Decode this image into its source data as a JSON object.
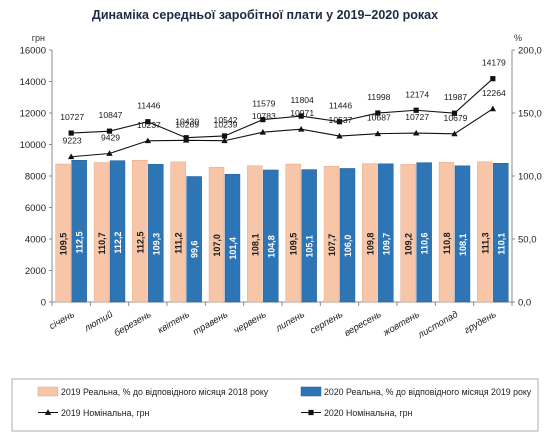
{
  "chart_data": {
    "type": "bar",
    "title": "Динаміка середньої заробітної плати у 2019–2020 роках",
    "left_axis_unit": "грн",
    "right_axis_unit": "%",
    "left_ylim": [
      0,
      16000
    ],
    "left_ticks": [
      0,
      2000,
      4000,
      6000,
      8000,
      10000,
      12000,
      14000,
      16000
    ],
    "right_ylim": [
      0,
      200
    ],
    "right_ticks": [
      "0,0",
      "50,0",
      "100,0",
      "150,0",
      "200,0"
    ],
    "right_tick_values": [
      0,
      50,
      100,
      150,
      200
    ],
    "categories": [
      "січень",
      "лютий",
      "березень",
      "квітень",
      "травень",
      "червень",
      "липень",
      "серпень",
      "вересень",
      "жовтень",
      "листопад",
      "грудень"
    ],
    "bar_series": [
      {
        "name": "2019 Реальна, % до відповідного місяця 2018 року",
        "color": "#f7c6a8",
        "values": [
          109.5,
          110.7,
          112.5,
          111.2,
          107.0,
          108.1,
          109.5,
          107.7,
          109.8,
          109.2,
          110.8,
          111.3
        ],
        "labels": [
          "109,5",
          "110,7",
          "112,5",
          "111,2",
          "107,0",
          "108,1",
          "109,5",
          "107,7",
          "109,8",
          "109,2",
          "110,8",
          "111,3"
        ]
      },
      {
        "name": "2020 Реальна, % до відповідного місяця 2019 року",
        "color": "#2e75b6",
        "values": [
          112.5,
          112.2,
          109.3,
          99.6,
          101.4,
          104.8,
          105.1,
          106.0,
          109.7,
          110.6,
          108.1,
          110.1
        ],
        "labels": [
          "112,5",
          "112,2",
          "109,3",
          "99,6",
          "101,4",
          "104,8",
          "105,1",
          "106,0",
          "109,7",
          "110,6",
          "108,1",
          "110,1"
        ]
      }
    ],
    "line_series": [
      {
        "name": "2019 Номінальна, грн",
        "marker": "triangle",
        "values": [
          9223,
          9429,
          10237,
          10269,
          10239,
          10783,
          10971,
          10537,
          10687,
          10727,
          10679,
          12264
        ],
        "labels": [
          "9223",
          "9429",
          "10237",
          "10269",
          "10239",
          "10783",
          "10971",
          "10537",
          "10687",
          "10727",
          "10679",
          "12264"
        ]
      },
      {
        "name": "2020 Номінальна, грн",
        "marker": "square",
        "values": [
          10727,
          10847,
          11446,
          10430,
          10542,
          11579,
          11804,
          11446,
          11998,
          12174,
          11987,
          14179
        ],
        "labels": [
          "10727",
          "10847",
          "11446",
          "10430",
          "10542",
          "11579",
          "11804",
          "11446",
          "11998",
          "12174",
          "11987",
          "14179"
        ]
      }
    ],
    "grid": false,
    "legend_position": "bottom"
  }
}
